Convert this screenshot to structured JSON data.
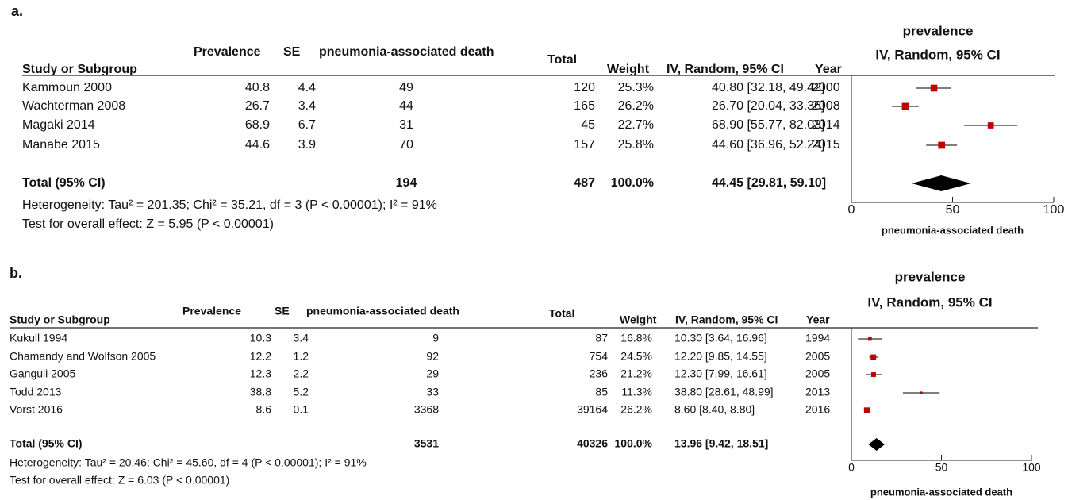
{
  "panels": [
    {
      "label": "a.",
      "headers": {
        "study": "Study or Subgroup",
        "prevalence": "Prevalence",
        "se": "SE",
        "events": "pneumonia-associated death",
        "total": "Total",
        "weight": "Weight",
        "ci": "IV, Random, 95% CI",
        "year": "Year"
      },
      "studies": [
        {
          "name": "Kammoun 2000",
          "prevalence": 40.8,
          "se": 4.4,
          "events": 49,
          "total": 120,
          "weight": {
            "value": 25.3,
            "label": "25.3%"
          },
          "ci": {
            "est": 40.8,
            "lo": 32.18,
            "hi": 49.42,
            "label": "40.80 [32.18, 49.42]"
          },
          "year": 2000
        },
        {
          "name": "Wachterman 2008",
          "prevalence": 26.7,
          "se": 3.4,
          "events": 44,
          "total": 165,
          "weight": {
            "value": 26.2,
            "label": "26.2%"
          },
          "ci": {
            "est": 26.7,
            "lo": 20.04,
            "hi": 33.36,
            "label": "26.70 [20.04, 33.36]"
          },
          "year": 2008
        },
        {
          "name": "Magaki 2014",
          "prevalence": 68.9,
          "se": 6.7,
          "events": 31,
          "total": 45,
          "weight": {
            "value": 22.7,
            "label": "22.7%"
          },
          "ci": {
            "est": 68.9,
            "lo": 55.77,
            "hi": 82.03,
            "label": "68.90 [55.77, 82.03]"
          },
          "year": 2014
        },
        {
          "name": "Manabe 2015",
          "prevalence": 44.6,
          "se": 3.9,
          "events": 70,
          "total": 157,
          "weight": {
            "value": 25.8,
            "label": "25.8%"
          },
          "ci": {
            "est": 44.6,
            "lo": 36.96,
            "hi": 52.24,
            "label": "44.60 [36.96, 52.24]"
          },
          "year": 2015
        }
      ],
      "total": {
        "name": "Total (95% CI)",
        "events": 194,
        "total": 487,
        "weight": "100.0%",
        "ci": {
          "est": 44.45,
          "lo": 29.81,
          "hi": 59.1,
          "label": "44.45 [29.81, 59.10]"
        }
      },
      "heterogeneity": "Heterogeneity: Tau² = 201.35; Chi² = 35.21, df = 3 (P < 0.00001); I² = 91%",
      "overall_effect": "Test for overall effect: Z = 5.95 (P < 0.00001)",
      "plot": {
        "title": "prevalence",
        "subtitle": "IV, Random, 95% CI",
        "xlim": [
          0,
          100
        ],
        "xticks": [
          0,
          50,
          100
        ],
        "xlabel": "pneumonia-associated death",
        "color": "#c00000"
      }
    },
    {
      "label": "b.",
      "headers": {
        "study": "Study or Subgroup",
        "prevalence": "Prevalence",
        "se": "SE",
        "events": "pneumonia-associated death",
        "total": "Total",
        "weight": "Weight",
        "ci": "IV, Random, 95% CI",
        "year": "Year"
      },
      "studies": [
        {
          "name": "Kukull 1994",
          "prevalence": 10.3,
          "se": 3.4,
          "events": 9,
          "total": 87,
          "weight": {
            "value": 16.8,
            "label": "16.8%"
          },
          "ci": {
            "est": 10.3,
            "lo": 3.64,
            "hi": 16.96,
            "label": "10.30 [3.64, 16.96]"
          },
          "year": 1994
        },
        {
          "name": "Chamandy and Wolfson 2005",
          "prevalence": 12.2,
          "se": 1.2,
          "events": 92,
          "total": 754,
          "weight": {
            "value": 24.5,
            "label": "24.5%"
          },
          "ci": {
            "est": 12.2,
            "lo": 9.85,
            "hi": 14.55,
            "label": "12.20 [9.85, 14.55]"
          },
          "year": 2005
        },
        {
          "name": "Ganguli 2005",
          "prevalence": 12.3,
          "se": 2.2,
          "events": 29,
          "total": 236,
          "weight": {
            "value": 21.2,
            "label": "21.2%"
          },
          "ci": {
            "est": 12.3,
            "lo": 7.99,
            "hi": 16.61,
            "label": "12.30 [7.99, 16.61]"
          },
          "year": 2005
        },
        {
          "name": "Todd 2013",
          "prevalence": 38.8,
          "se": 5.2,
          "events": 33,
          "total": 85,
          "weight": {
            "value": 11.3,
            "label": "11.3%"
          },
          "ci": {
            "est": 38.8,
            "lo": 28.61,
            "hi": 48.99,
            "label": "38.80 [28.61, 48.99]"
          },
          "year": 2013
        },
        {
          "name": "Vorst 2016",
          "prevalence": 8.6,
          "se": 0.1,
          "events": 3368,
          "total": 39164,
          "weight": {
            "value": 26.2,
            "label": "26.2%"
          },
          "ci": {
            "est": 8.6,
            "lo": 8.4,
            "hi": 8.8,
            "label": "8.60 [8.40, 8.80]"
          },
          "year": 2016
        }
      ],
      "total": {
        "name": "Total (95% CI)",
        "events": 3531,
        "total": 40326,
        "weight": "100.0%",
        "ci": {
          "est": 13.96,
          "lo": 9.42,
          "hi": 18.51,
          "label": "13.96 [9.42, 18.51]"
        }
      },
      "heterogeneity": "Heterogeneity: Tau² = 20.46; Chi² = 45.60, df = 4 (P < 0.00001); I² = 91%",
      "overall_effect": "Test for overall effect: Z = 6.03 (P < 0.00001)",
      "plot": {
        "title": "prevalence",
        "subtitle": "IV, Random, 95% CI",
        "xlim": [
          0,
          100
        ],
        "xticks": [
          0,
          50,
          100
        ],
        "xlabel": "pneumonia-associated death",
        "color": "#c00000"
      }
    }
  ]
}
